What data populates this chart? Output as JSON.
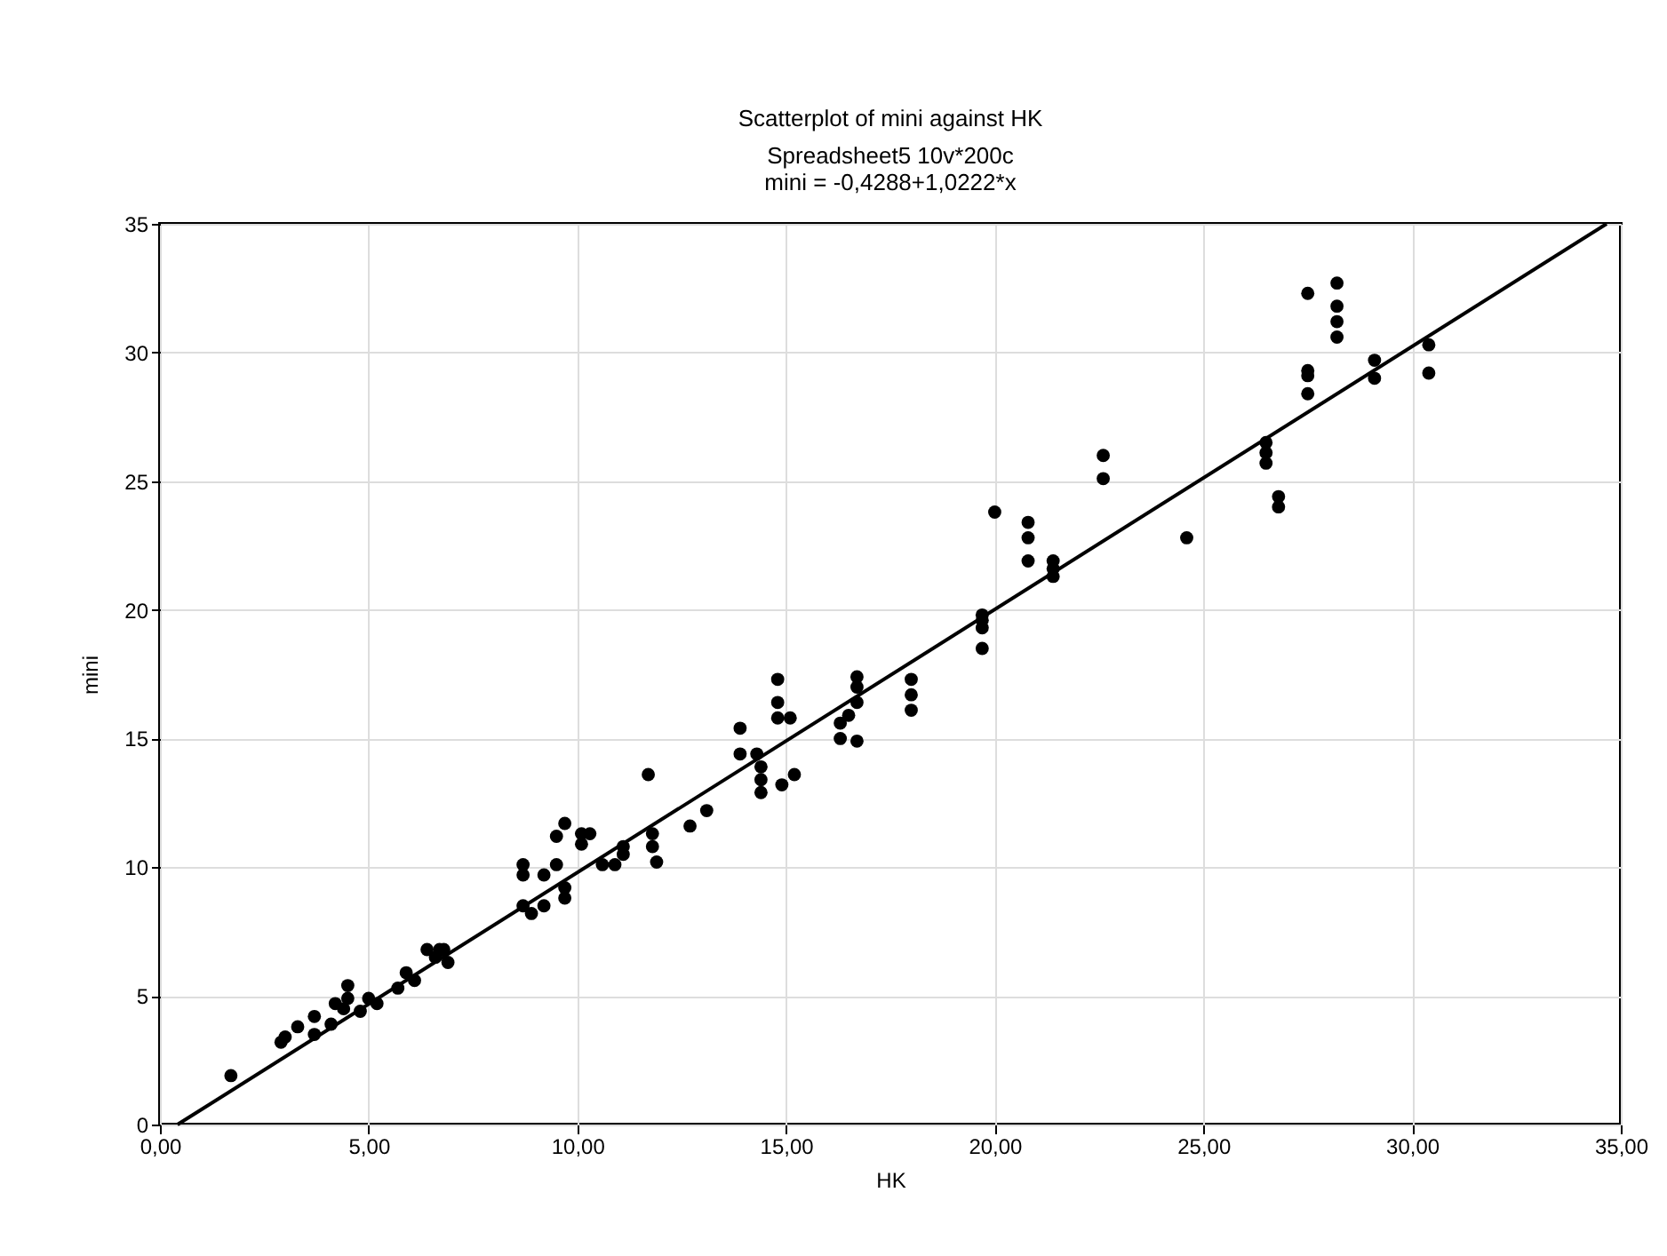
{
  "chart_data": {
    "type": "scatter",
    "title": "Scatterplot of mini against HK",
    "subtitle": "Spreadsheet5 10v*200c",
    "annotations": [
      "mini = -0,4288+1,0222*x"
    ],
    "xlabel": "HK",
    "ylabel": "mini",
    "xlim": [
      0,
      35
    ],
    "ylim": [
      0,
      35
    ],
    "xticks": [
      {
        "value": 0,
        "label": "0,00"
      },
      {
        "value": 5,
        "label": "5,00"
      },
      {
        "value": 10,
        "label": "10,00"
      },
      {
        "value": 15,
        "label": "15,00"
      },
      {
        "value": 20,
        "label": "20,00"
      },
      {
        "value": 25,
        "label": "25,00"
      },
      {
        "value": 30,
        "label": "30,00"
      },
      {
        "value": 35,
        "label": "35,00"
      }
    ],
    "yticks": [
      0,
      5,
      10,
      15,
      20,
      25,
      30,
      35
    ],
    "grid": true,
    "series": [
      {
        "color": "#000000",
        "marker": "circle",
        "x": [
          1.7,
          2.9,
          3.0,
          3.3,
          3.7,
          3.7,
          4.1,
          4.2,
          4.5,
          4.5,
          4.4,
          4.8,
          5.0,
          5.2,
          5.7,
          5.9,
          6.1,
          6.4,
          6.7,
          6.8,
          6.9,
          6.6,
          8.7,
          8.7,
          8.7,
          8.9,
          9.2,
          9.2,
          9.5,
          9.7,
          9.7,
          9.5,
          9.7,
          10.1,
          10.3,
          10.1,
          10.6,
          10.9,
          11.1,
          11.1,
          11.7,
          11.8,
          11.8,
          11.9,
          12.7,
          13.1,
          13.9,
          13.9,
          14.3,
          14.4,
          14.4,
          14.4,
          14.9,
          15.2,
          14.8,
          14.8,
          14.8,
          15.1,
          16.3,
          16.3,
          16.7,
          16.7,
          16.7,
          16.5,
          16.7,
          18.0,
          18.0,
          18.0,
          19.7,
          19.7,
          19.7,
          19.7,
          20.0,
          20.8,
          20.8,
          20.8,
          21.4,
          21.4,
          21.4,
          22.6,
          22.6,
          24.6,
          26.5,
          26.5,
          26.5,
          26.8,
          26.8,
          27.5,
          27.5,
          27.5,
          27.5,
          28.2,
          28.2,
          28.2,
          28.2,
          29.1,
          29.1,
          30.4,
          30.4
        ],
        "values": [
          1.9,
          3.2,
          3.4,
          3.8,
          4.2,
          3.5,
          3.9,
          4.7,
          5.4,
          4.9,
          4.5,
          4.4,
          4.9,
          4.7,
          5.3,
          5.9,
          5.6,
          6.8,
          6.8,
          6.8,
          6.3,
          6.5,
          10.1,
          9.7,
          8.5,
          8.2,
          9.7,
          8.5,
          10.1,
          9.2,
          8.8,
          11.2,
          11.7,
          11.3,
          11.3,
          10.9,
          10.1,
          10.1,
          10.5,
          10.8,
          13.6,
          11.3,
          10.8,
          10.2,
          11.6,
          12.2,
          15.4,
          14.4,
          14.4,
          13.9,
          13.4,
          12.9,
          13.2,
          13.6,
          17.3,
          16.4,
          15.8,
          15.8,
          15.6,
          15.0,
          17.4,
          17.0,
          16.4,
          15.9,
          14.9,
          17.3,
          16.7,
          16.1,
          18.5,
          19.3,
          19.8,
          19.6,
          23.8,
          23.4,
          22.8,
          21.9,
          21.9,
          21.3,
          21.6,
          26.0,
          25.1,
          22.8,
          26.5,
          26.1,
          25.7,
          24.4,
          24.0,
          32.3,
          29.3,
          29.1,
          28.4,
          32.7,
          31.8,
          31.2,
          30.6,
          29.7,
          29.0,
          30.3,
          29.2
        ]
      },
      {
        "type": "line",
        "color": "#000000",
        "line_style": "solid",
        "x": [
          0.42,
          34.66
        ],
        "values": [
          0,
          35
        ]
      }
    ]
  }
}
